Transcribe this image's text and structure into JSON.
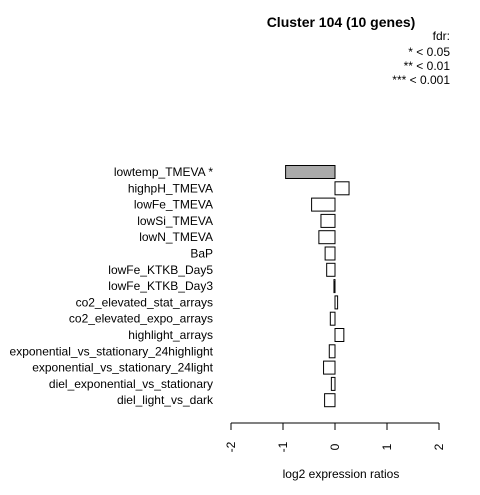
{
  "chart_data": {
    "type": "bar",
    "orientation": "horizontal",
    "title": "Cluster 104 (10 genes)",
    "xlabel": "log2 expression ratios",
    "ylabel": "",
    "xlim": [
      -2,
      2
    ],
    "xticks": [
      "-2",
      "-1",
      "0",
      "1",
      "2"
    ],
    "legend": {
      "title": "fdr:",
      "entries": [
        "* < 0.05",
        "** < 0.01",
        "*** < 0.001"
      ]
    },
    "categories": [
      "lowtemp_TMEVA *",
      "highpH_TMEVA",
      "lowFe_TMEVA",
      "lowSi_TMEVA",
      "lowN_TMEVA",
      "BaP",
      "lowFe_KTKB_Day5",
      "lowFe_KTKB_Day3",
      "co2_elevated_stat_arrays",
      "co2_elevated_expo_arrays",
      "highlight_arrays",
      "exponential_vs_stationary_24highlight",
      "exponential_vs_stationary_24light",
      "diel_exponential_vs_stationary",
      "diel_light_vs_dark"
    ],
    "values": [
      -0.95,
      0.27,
      -0.45,
      -0.27,
      -0.31,
      -0.19,
      -0.16,
      -0.02,
      0.05,
      -0.09,
      0.17,
      -0.11,
      -0.22,
      -0.07,
      -0.2
    ],
    "significant": [
      true,
      false,
      false,
      false,
      false,
      false,
      false,
      false,
      false,
      false,
      false,
      false,
      false,
      false,
      false
    ],
    "colors": {
      "significant": "#aaaaaa",
      "default": "#ffffff",
      "stroke": "#000000"
    }
  }
}
